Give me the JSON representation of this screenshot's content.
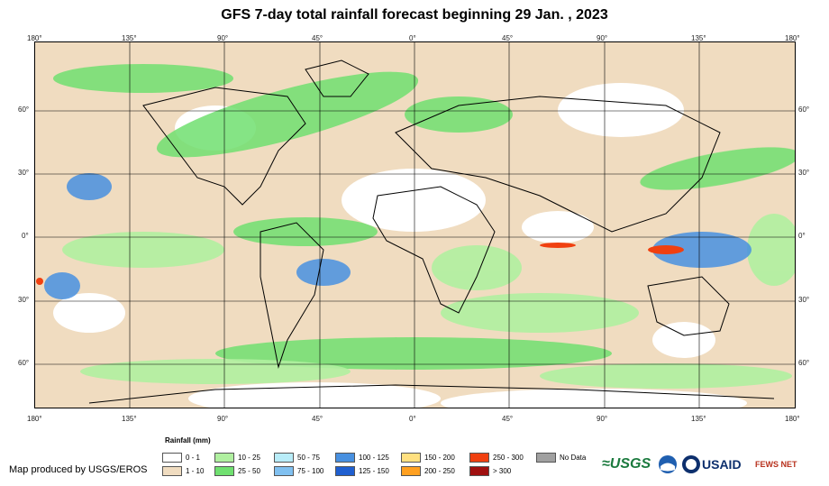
{
  "title": "GFS 7-day total rainfall forecast beginning 29 Jan. , 2023",
  "lon_labels": [
    "180°",
    "135°",
    "90°",
    "45°",
    "0°",
    "45°",
    "90°",
    "135°",
    "180°"
  ],
  "lat_labels": [
    "60°",
    "30°",
    "0°",
    "30°",
    "60°"
  ],
  "legend": {
    "title": "Rainfall (mm)",
    "items": [
      {
        "label": "0 - 1",
        "color": "#ffffff"
      },
      {
        "label": "1 - 10",
        "color": "#f0dcc0"
      },
      {
        "label": "10 - 25",
        "color": "#b0f0a0"
      },
      {
        "label": "25 - 50",
        "color": "#70e070"
      },
      {
        "label": "50 - 75",
        "color": "#b8ecf8"
      },
      {
        "label": "75 - 100",
        "color": "#80c0f0"
      },
      {
        "label": "100 - 125",
        "color": "#4890e0"
      },
      {
        "label": "125 - 150",
        "color": "#1f5fd0"
      },
      {
        "label": "150 - 200",
        "color": "#ffe080"
      },
      {
        "label": "200 - 250",
        "color": "#ffa020"
      },
      {
        "label": "250 - 300",
        "color": "#f04010"
      },
      {
        "label": "> 300",
        "color": "#a01010"
      },
      {
        "label": "No Data",
        "color": "#a0a0a0"
      }
    ]
  },
  "credit": "Map produced by USGS/EROS",
  "logos": {
    "usgs": "≈USGS",
    "usaid": "USAID",
    "fews": "FEWS NET"
  }
}
